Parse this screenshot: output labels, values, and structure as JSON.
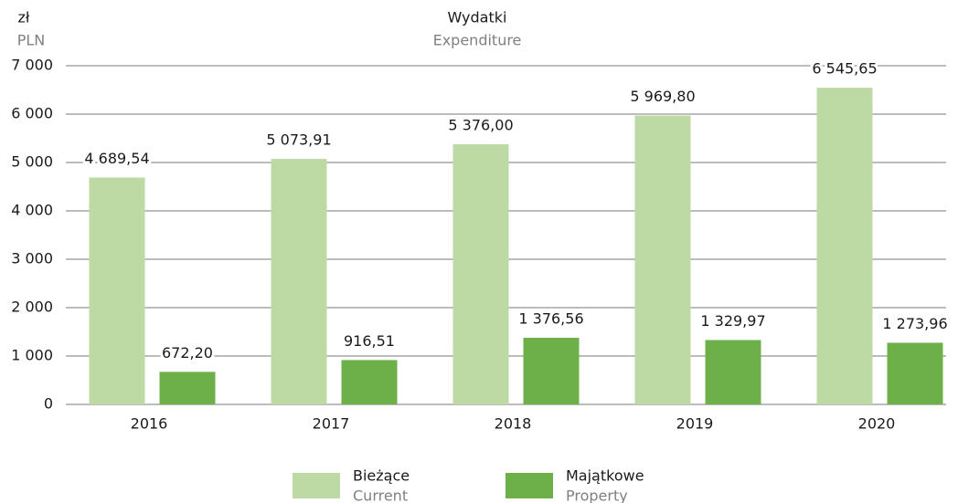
{
  "chart_data": {
    "type": "bar",
    "title": "Wydatki",
    "subtitle": "Expenditure",
    "y_unit": "zł",
    "y_unit_en": "PLN",
    "categories": [
      "2016",
      "2017",
      "2018",
      "2019",
      "2020"
    ],
    "series": [
      {
        "name": "Bieżące",
        "name_en": "Current",
        "color": "#bdd9a4",
        "values": [
          4689.54,
          5073.91,
          5376.0,
          5969.8,
          6545.65
        ],
        "value_labels": [
          "4 689,54",
          "5 073,91",
          "5 376,00",
          "5 969,80",
          "6 545,65"
        ]
      },
      {
        "name": "Majątkowe",
        "name_en": "Property",
        "color": "#6db04a",
        "values": [
          672.2,
          916.51,
          1376.56,
          1329.97,
          1273.96
        ],
        "value_labels": [
          "672,20",
          "916,51",
          "1 376,56",
          "1 329,97",
          "1 273,96"
        ]
      }
    ],
    "ylim": [
      0,
      7000
    ],
    "yticks": [
      0,
      {
        "value": 1000,
        "label": "1 000"
      },
      {
        "value": 2000,
        "label": "2 000"
      },
      {
        "value": 3000,
        "label": "3 000"
      },
      {
        "value": 4000,
        "label": "4 000"
      },
      {
        "value": 5000,
        "label": "5 000"
      },
      {
        "value": 6000,
        "label": "6 000"
      },
      {
        "value": 7000,
        "label": "7 000"
      }
    ],
    "grid": true
  }
}
